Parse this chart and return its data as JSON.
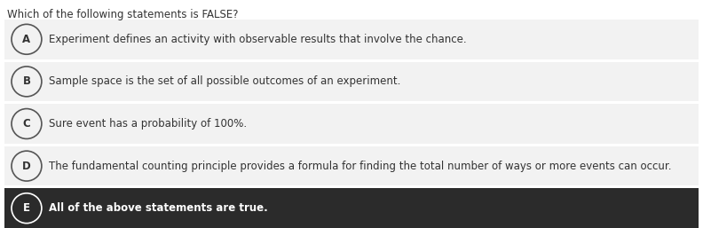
{
  "title": "Which of the following statements is FALSE?",
  "title_fontsize": 8.5,
  "title_color": "#333333",
  "bg_color": "#ffffff",
  "options": [
    {
      "letter": "A",
      "text": "Experiment defines an activity with observable results that involve the chance.",
      "row_bg": "#f2f2f2",
      "circle_bg": "#f2f2f2",
      "circle_edge": "#555555",
      "letter_color": "#333333",
      "text_color": "#333333",
      "bold": false
    },
    {
      "letter": "B",
      "text": "Sample space is the set of all possible outcomes of an experiment.",
      "row_bg": "#f2f2f2",
      "circle_bg": "#f2f2f2",
      "circle_edge": "#555555",
      "letter_color": "#333333",
      "text_color": "#333333",
      "bold": false
    },
    {
      "letter": "C",
      "text": "Sure event has a probability of 100%.",
      "row_bg": "#f2f2f2",
      "circle_bg": "#f2f2f2",
      "circle_edge": "#555555",
      "letter_color": "#333333",
      "text_color": "#333333",
      "bold": false
    },
    {
      "letter": "D",
      "text": "The fundamental counting principle provides a formula for finding the total number of ways or more events can occur.",
      "row_bg": "#f2f2f2",
      "circle_bg": "#f2f2f2",
      "circle_edge": "#555555",
      "letter_color": "#333333",
      "text_color": "#333333",
      "bold": false
    },
    {
      "letter": "E",
      "text": "All of the above statements are true.",
      "row_bg": "#2b2b2b",
      "circle_bg": "#2b2b2b",
      "circle_edge": "#ffffff",
      "letter_color": "#ffffff",
      "text_color": "#ffffff",
      "bold": true
    }
  ],
  "font_size": 8.5,
  "letter_fontsize": 8.5,
  "fig_width": 7.92,
  "fig_height": 2.57,
  "dpi": 100
}
